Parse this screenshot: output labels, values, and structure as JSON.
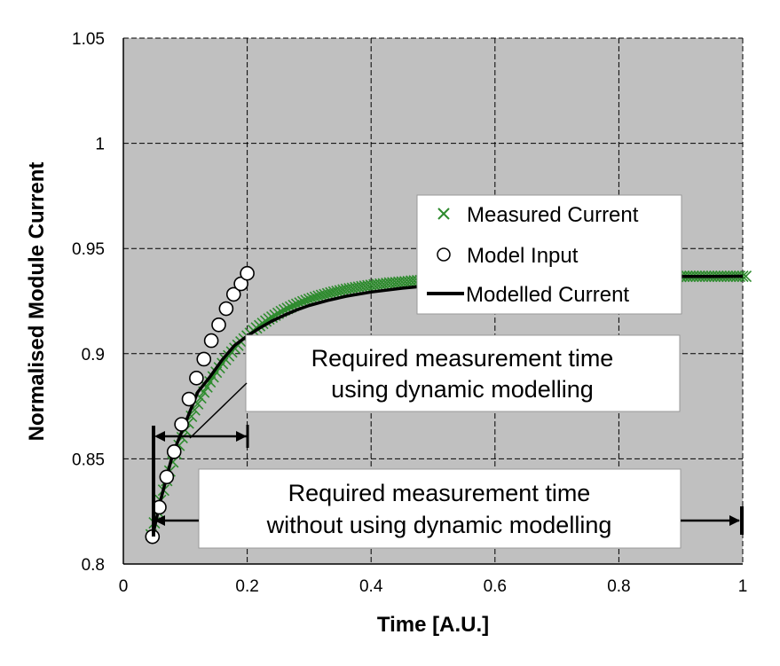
{
  "chart_data": {
    "type": "scatter",
    "title": "",
    "xlabel": "Time [A.U.]",
    "ylabel": "Normalised Module Current",
    "xlim": [
      0,
      1
    ],
    "ylim": [
      0.8,
      1.05
    ],
    "x_ticks": [
      "0",
      "0.2",
      "0.4",
      "0.6",
      "0.8",
      "1"
    ],
    "y_ticks": [
      "0.8",
      "0.85",
      "0.9",
      "0.95",
      "1",
      "1.05"
    ],
    "grid": true,
    "legend_position": "right",
    "colors": {
      "plot_background": "#c0c0c0",
      "measured": "#2e8b2e",
      "model_input_fill": "#ffffff",
      "modelled": "#000000"
    },
    "series": [
      {
        "name": "Measured Current",
        "marker": "x",
        "x": [
          0.045,
          0.05,
          0.055,
          0.06,
          0.065,
          0.07,
          0.075,
          0.08,
          0.085,
          0.09,
          0.095,
          0.1,
          0.105,
          0.11,
          0.115,
          0.12,
          0.125,
          0.13,
          0.135,
          0.14,
          0.145,
          0.15,
          0.155,
          0.16,
          0.165,
          0.17,
          0.175,
          0.18,
          0.185,
          0.19,
          0.195,
          0.2,
          0.205,
          0.21,
          0.215,
          0.22,
          0.225,
          0.23,
          0.235,
          0.24,
          0.245,
          0.25,
          0.255,
          0.26,
          0.265,
          0.27,
          0.275,
          0.28,
          0.285,
          0.29,
          0.295,
          0.3,
          0.305,
          0.31,
          0.315,
          0.32,
          0.325,
          0.33,
          0.335,
          0.34,
          0.345,
          0.35,
          0.355,
          0.36,
          0.365,
          0.37,
          0.375,
          0.38,
          0.385,
          0.39,
          0.395,
          0.4,
          0.405,
          0.41,
          0.415,
          0.42,
          0.425,
          0.43,
          0.435,
          0.44,
          0.445,
          0.45,
          0.455,
          0.46,
          0.465,
          0.47,
          0.475,
          0.48,
          0.485,
          0.49,
          0.495,
          0.5,
          0.505,
          0.51,
          0.515,
          0.52,
          0.525,
          0.53,
          0.535,
          0.54,
          0.545,
          0.55,
          0.555,
          0.56,
          0.565,
          0.57,
          0.575,
          0.58,
          0.585,
          0.59,
          0.595,
          0.6,
          0.605,
          0.61,
          0.615,
          0.62,
          0.625,
          0.63,
          0.635,
          0.64,
          0.645,
          0.65,
          0.655,
          0.66,
          0.665,
          0.67,
          0.675,
          0.68,
          0.685,
          0.69,
          0.695,
          0.7,
          0.705,
          0.71,
          0.715,
          0.72,
          0.725,
          0.73,
          0.735,
          0.74,
          0.745,
          0.75,
          0.755,
          0.76,
          0.765,
          0.77,
          0.775,
          0.78,
          0.785,
          0.79,
          0.795,
          0.8,
          0.805,
          0.81,
          0.815,
          0.82,
          0.825,
          0.83,
          0.835,
          0.84,
          0.845,
          0.85,
          0.855,
          0.86,
          0.865,
          0.87,
          0.875,
          0.88,
          0.885,
          0.89,
          0.895,
          0.9,
          0.905,
          0.91,
          0.915,
          0.92,
          0.925,
          0.93,
          0.935,
          0.94,
          0.945,
          0.95,
          0.955,
          0.96,
          0.965,
          0.97,
          0.975,
          0.98,
          0.985,
          0.99,
          0.995,
          1.0,
          1.005
        ],
        "y": [
          0.8139,
          0.8196,
          0.825,
          0.8302,
          0.8351,
          0.8397,
          0.8442,
          0.8485,
          0.8525,
          0.8564,
          0.8601,
          0.8636,
          0.867,
          0.8702,
          0.8733,
          0.8762,
          0.879,
          0.8817,
          0.8842,
          0.8866,
          0.889,
          0.8912,
          0.8933,
          0.8953,
          0.8972,
          0.899,
          0.9008,
          0.9025,
          0.904,
          0.9056,
          0.907,
          0.9084,
          0.9097,
          0.911,
          0.9122,
          0.9133,
          0.9144,
          0.9155,
          0.9165,
          0.9174,
          0.9183,
          0.9192,
          0.92,
          0.9208,
          0.9215,
          0.9222,
          0.9229,
          0.9235,
          0.9241,
          0.9247,
          0.9253,
          0.9258,
          0.9263,
          0.9268,
          0.9273,
          0.9277,
          0.9281,
          0.9285,
          0.9289,
          0.9293,
          0.9296,
          0.9299,
          0.9303,
          0.9306,
          0.9309,
          0.9311,
          0.9314,
          0.9316,
          0.9319,
          0.9321,
          0.9323,
          0.9325,
          0.9327,
          0.9329,
          0.9331,
          0.9332,
          0.9334,
          0.9336,
          0.9337,
          0.9338,
          0.934,
          0.9341,
          0.9342,
          0.9343,
          0.9345,
          0.9346,
          0.9347,
          0.9348,
          0.9349,
          0.9349,
          0.935,
          0.9351,
          0.9352,
          0.9353,
          0.9353,
          0.9354,
          0.9355,
          0.9355,
          0.9356,
          0.9356,
          0.9357,
          0.9357,
          0.9358,
          0.9358,
          0.9359,
          0.9359,
          0.936,
          0.936,
          0.936,
          0.9361,
          0.9361,
          0.9361,
          0.9362,
          0.9362,
          0.9362,
          0.9362,
          0.9363,
          0.9363,
          0.9363,
          0.9363,
          0.9364,
          0.9364,
          0.9364,
          0.9364,
          0.9364,
          0.9364,
          0.9365,
          0.9365,
          0.9365,
          0.9365,
          0.9365,
          0.9365,
          0.9365,
          0.9366,
          0.9366,
          0.9366,
          0.9366,
          0.9366,
          0.9366,
          0.9366,
          0.9366,
          0.9366,
          0.9366,
          0.9366,
          0.9367,
          0.9367,
          0.9367,
          0.9367,
          0.9367,
          0.9367,
          0.9367,
          0.9367,
          0.9367,
          0.9367,
          0.9367,
          0.9367,
          0.9367,
          0.9367,
          0.9367,
          0.9367,
          0.9367,
          0.9367,
          0.9367,
          0.9367,
          0.9367,
          0.9367,
          0.9367,
          0.9367,
          0.9367,
          0.9367,
          0.9367,
          0.9367,
          0.9368,
          0.9368,
          0.9368,
          0.9368,
          0.9368,
          0.9368,
          0.9368,
          0.9368,
          0.9368,
          0.9368,
          0.9368,
          0.9368,
          0.9368,
          0.9368,
          0.9368,
          0.9368,
          0.9368,
          0.9368,
          0.9368,
          0.9368,
          0.9368
        ]
      },
      {
        "name": "Model Input",
        "marker": "o",
        "x": [
          0.047,
          0.058,
          0.07,
          0.082,
          0.094,
          0.106,
          0.118,
          0.13,
          0.142,
          0.154,
          0.166,
          0.178,
          0.19,
          0.2
        ],
        "y": [
          0.813,
          0.827,
          0.8414,
          0.8534,
          0.8664,
          0.8784,
          0.8884,
          0.8974,
          0.9062,
          0.9137,
          0.9214,
          0.9282,
          0.9332,
          0.9382
        ]
      },
      {
        "name": "Modelled Current",
        "marker": "line",
        "x": [
          0.047,
          0.06,
          0.08,
          0.1,
          0.12,
          0.14,
          0.16,
          0.18,
          0.2,
          0.22,
          0.24,
          0.26,
          0.28,
          0.3,
          0.33,
          0.36,
          0.4,
          0.45,
          0.5,
          0.55,
          0.6,
          0.65,
          0.7,
          0.75,
          0.8,
          0.85,
          0.9,
          0.95,
          1.0
        ],
        "y": [
          0.813,
          0.8302,
          0.8525,
          0.867,
          0.8817,
          0.889,
          0.8972,
          0.904,
          0.9084,
          0.9122,
          0.9155,
          0.9183,
          0.9208,
          0.9229,
          0.9253,
          0.9273,
          0.9293,
          0.9311,
          0.9325,
          0.9336,
          0.9345,
          0.9352,
          0.9357,
          0.9361,
          0.9364,
          0.9366,
          0.9367,
          0.9367,
          0.9368
        ]
      }
    ],
    "annotations": [
      {
        "lines": [
          "Required measurement time",
          "using dynamic modelling"
        ],
        "range_x": [
          0.05,
          0.2
        ],
        "y": 0.8625
      },
      {
        "lines": [
          "Required measurement time",
          "without using dynamic modelling"
        ],
        "range_x": [
          0.05,
          1.0
        ],
        "y": 0.821
      }
    ]
  }
}
